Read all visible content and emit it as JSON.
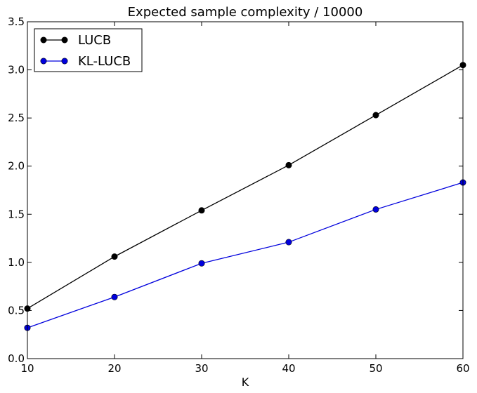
{
  "chart_data": {
    "type": "line",
    "title": "Expected sample complexity / 10000",
    "xlabel": "K",
    "ylabel": "",
    "x": [
      10,
      20,
      30,
      40,
      50,
      60
    ],
    "xlim": [
      10,
      60
    ],
    "ylim": [
      0,
      3.5
    ],
    "xticks": [
      10,
      20,
      30,
      40,
      50,
      60
    ],
    "xtick_labels": [
      "10",
      "20",
      "30",
      "40",
      "50",
      "60"
    ],
    "yticks": [
      0,
      0.5,
      1.0,
      1.5,
      2.0,
      2.5,
      3.0,
      3.5
    ],
    "ytick_labels": [
      "0.0",
      "0.5",
      "1.0",
      "1.5",
      "2.0",
      "2.5",
      "3.0",
      "3.5"
    ],
    "grid": false,
    "legend_position": "top-left",
    "series": [
      {
        "name": "LUCB",
        "color": "#000000",
        "values": [
          0.52,
          1.06,
          1.54,
          2.01,
          2.53,
          3.05
        ]
      },
      {
        "name": "KL-LUCB",
        "color": "#0000dd",
        "values": [
          0.32,
          0.64,
          0.99,
          1.21,
          1.55,
          1.83
        ]
      }
    ]
  }
}
